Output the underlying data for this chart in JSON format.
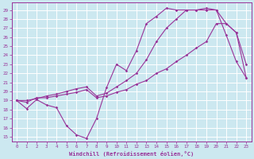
{
  "xlabel": "Windchill (Refroidissement éolien,°C)",
  "background_color": "#cce8f0",
  "grid_color": "#ffffff",
  "line_color": "#993399",
  "xlim": [
    -0.5,
    23.5
  ],
  "ylim": [
    14.5,
    29.8
  ],
  "yticks": [
    15,
    16,
    17,
    18,
    19,
    20,
    21,
    22,
    23,
    24,
    25,
    26,
    27,
    28,
    29
  ],
  "xticks": [
    0,
    1,
    2,
    3,
    4,
    5,
    6,
    7,
    8,
    9,
    10,
    11,
    12,
    13,
    14,
    15,
    16,
    17,
    18,
    19,
    20,
    21,
    22,
    23
  ],
  "line1_x": [
    0,
    1,
    2,
    3,
    4,
    5,
    6,
    7,
    8,
    9,
    10,
    11,
    12,
    13,
    14,
    15,
    16,
    17,
    18,
    19,
    20,
    21,
    22,
    23
  ],
  "line1_y": [
    19.0,
    18.1,
    19.1,
    18.5,
    18.2,
    16.2,
    15.2,
    14.8,
    17.0,
    20.4,
    23.0,
    22.3,
    24.5,
    27.5,
    28.3,
    29.2,
    29.0,
    29.0,
    29.0,
    29.0,
    29.0,
    26.2,
    23.3,
    21.5
  ],
  "line2_x": [
    0,
    1,
    2,
    3,
    4,
    5,
    6,
    7,
    8,
    9,
    10,
    11,
    12,
    13,
    14,
    15,
    16,
    17,
    18,
    19,
    20,
    21,
    22,
    23
  ],
  "line2_y": [
    19.0,
    18.8,
    19.3,
    19.3,
    19.5,
    19.7,
    19.9,
    20.2,
    19.3,
    19.5,
    19.9,
    20.2,
    20.8,
    21.2,
    22.0,
    22.5,
    23.3,
    24.0,
    24.8,
    25.5,
    27.5,
    27.5,
    26.5,
    21.5
  ],
  "line3_x": [
    0,
    1,
    2,
    3,
    4,
    5,
    6,
    7,
    8,
    9,
    10,
    11,
    12,
    13,
    14,
    15,
    16,
    17,
    18,
    19,
    20,
    21,
    22,
    23
  ],
  "line3_y": [
    19.0,
    19.0,
    19.2,
    19.5,
    19.7,
    20.0,
    20.3,
    20.5,
    19.5,
    19.8,
    20.5,
    21.2,
    22.0,
    23.5,
    25.5,
    27.0,
    28.0,
    29.0,
    29.0,
    29.2,
    29.0,
    27.5,
    26.5,
    23.0
  ]
}
